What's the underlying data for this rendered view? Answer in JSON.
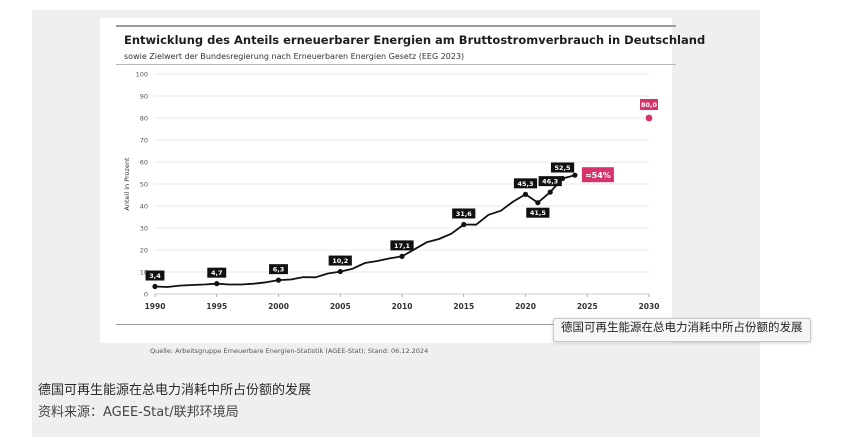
{
  "caption": {
    "title": "德国可再生能源在总电力消耗中所占份额的发展",
    "source": "资料来源：AGEE-Stat/联邦环境局"
  },
  "tooltip": {
    "text": "德国可再生能源在总电力消耗中所占份额的发展"
  },
  "chart_source": "Quelle: Arbeitsgruppe Erneuerbare Energien-Statistik (AGEE-Stat); Stand: 06.12.2024",
  "colors": {
    "line": "#111111",
    "label_bg": "#111111",
    "accent": "#d6336c",
    "grid": "#e2e2e2",
    "axis_text": "#555555"
  },
  "chart_data": {
    "type": "line",
    "title": "Entwicklung des Anteils erneuerbarer Energien am Bruttostromverbrauch in Deutschland",
    "subtitle": "sowie Zielwert der Bundesregierung nach Erneuerbaren Energien Gesetz (EEG 2023)",
    "ylabel": "Anteil in Prozent",
    "xlabel": "",
    "xlim": [
      1990,
      2030
    ],
    "ylim": [
      0,
      100
    ],
    "grid": true,
    "x_ticks": [
      "1990",
      "1995",
      "2000",
      "2005",
      "2010",
      "2015",
      "2020",
      "2025",
      "2030"
    ],
    "y_ticks": [
      "0",
      "10",
      "20",
      "30",
      "40",
      "50",
      "60",
      "70",
      "80",
      "90",
      "100"
    ],
    "series": [
      {
        "x": [
          1990,
          1991,
          1992,
          1993,
          1994,
          1995,
          1996,
          1997,
          1998,
          1999,
          2000,
          2001,
          2002,
          2003,
          2004,
          2005,
          2006,
          2007,
          2008,
          2009,
          2010,
          2011,
          2012,
          2013,
          2014,
          2015,
          2016,
          2017,
          2018,
          2019,
          2020,
          2021,
          2022,
          2023,
          2024
        ],
        "y": [
          3.4,
          3.2,
          3.8,
          4.1,
          4.3,
          4.7,
          4.3,
          4.3,
          4.7,
          5.3,
          6.3,
          6.6,
          7.7,
          7.6,
          9.3,
          10.2,
          11.5,
          14.1,
          15.0,
          16.2,
          17.1,
          20.3,
          23.5,
          25.0,
          27.4,
          31.6,
          31.5,
          36.0,
          37.8,
          42.0,
          45.3,
          41.5,
          46.3,
          52.5,
          54.0
        ]
      }
    ],
    "labels": [
      {
        "x": 1990,
        "y": 3.4,
        "text": "3,4"
      },
      {
        "x": 1995,
        "y": 4.7,
        "text": "4,7"
      },
      {
        "x": 2000,
        "y": 6.3,
        "text": "6,3"
      },
      {
        "x": 2005,
        "y": 10.2,
        "text": "10,2"
      },
      {
        "x": 2010,
        "y": 17.1,
        "text": "17,1"
      },
      {
        "x": 2015,
        "y": 31.6,
        "text": "31,6"
      },
      {
        "x": 2020,
        "y": 45.3,
        "text": "45,3"
      },
      {
        "x": 2021,
        "y": 41.5,
        "text": "41,5"
      },
      {
        "x": 2022,
        "y": 46.3,
        "text": "46,3"
      },
      {
        "x": 2023,
        "y": 52.5,
        "text": "52,5"
      }
    ],
    "annotation_2024": {
      "x": 2024,
      "y": 54,
      "text": "≈54%"
    },
    "target": {
      "x": 2030,
      "y": 80,
      "text": "80,0"
    }
  }
}
